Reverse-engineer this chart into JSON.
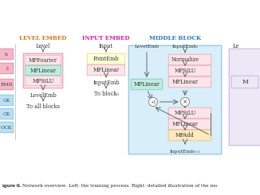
{
  "caption": "igure 6. Network overview. Left: the training process. Right: detailed illustration of the mo",
  "left_strip": {
    "labels": [
      "h",
      "3",
      "EMB",
      "CK",
      "CK",
      "OCK"
    ],
    "colors": [
      "#f5b8c8",
      "#f5b8c8",
      "#f5b8c8",
      "#b8e0f5",
      "#b8e0f5",
      "#b8e0f5"
    ],
    "border_colors": [
      "#e080a0",
      "#e080a0",
      "#e080a0",
      "#80c0e8",
      "#80c0e8",
      "#80c0e8"
    ]
  },
  "level_embed": {
    "title": "Level Embed",
    "title_color": "#d87820",
    "input_label": "Level",
    "outer_color": "#fce8ec",
    "outer_border": "#e090a8",
    "boxes": [
      {
        "label": "MPFourier",
        "color": "#fce4e8",
        "border": "#e8a0b0"
      },
      {
        "label": "MPLinear",
        "color": "#c0ece0",
        "border": "#70c8a8"
      },
      {
        "label": "MPSiLU",
        "color": "#fce4e8",
        "border": "#e8a0b0"
      }
    ],
    "output_label": "LevelEmb",
    "bottom_label": "To all blocks"
  },
  "input_embed": {
    "title": "Input Embed",
    "title_color": "#d820a0",
    "input_label": "Input",
    "boxes": [
      {
        "label": "PointEmb",
        "color": "#fefed8",
        "border": "#d8d870"
      },
      {
        "label": "MPLinear",
        "color": "#fce4e8",
        "border": "#e8a0b0"
      }
    ],
    "output_label": "InputEmb",
    "bottom_label": "To block₀"
  },
  "middle_block": {
    "title": "Middle Block",
    "title_color": "#2878c0",
    "bg_color": "#d8eef8",
    "bg_border": "#88c0e0",
    "left_input": "LevelEmb",
    "right_input": "InputEmbᵢ",
    "left_box": {
      "label": "MPLinear",
      "color": "#c0ece0",
      "border": "#70c8a8"
    },
    "right_boxes": [
      {
        "label": "Normalize",
        "color": "#fce4e8",
        "border": "#e8a0b0"
      },
      {
        "label": "MPSiLU",
        "color": "#fce4e8",
        "border": "#e8a0b0"
      },
      {
        "label": "MPLinear",
        "color": "#fce4e8",
        "border": "#e8a0b0"
      }
    ],
    "bottom_boxes": [
      {
        "label": "MPSiLU",
        "color": "#fce4e8",
        "border": "#e8a0b0"
      },
      {
        "label": "MPLinear",
        "color": "#fce4e8",
        "border": "#e8a0b0"
      },
      {
        "label": "MPAdd",
        "color": "#fde8c0",
        "border": "#e0c070"
      }
    ],
    "output_label": "InputEmbᵢ₊₁"
  },
  "right_panel": {
    "label_top": "Le",
    "box_label": "M",
    "bg_color": "#ede8f5",
    "border_color": "#c0b0d8"
  }
}
